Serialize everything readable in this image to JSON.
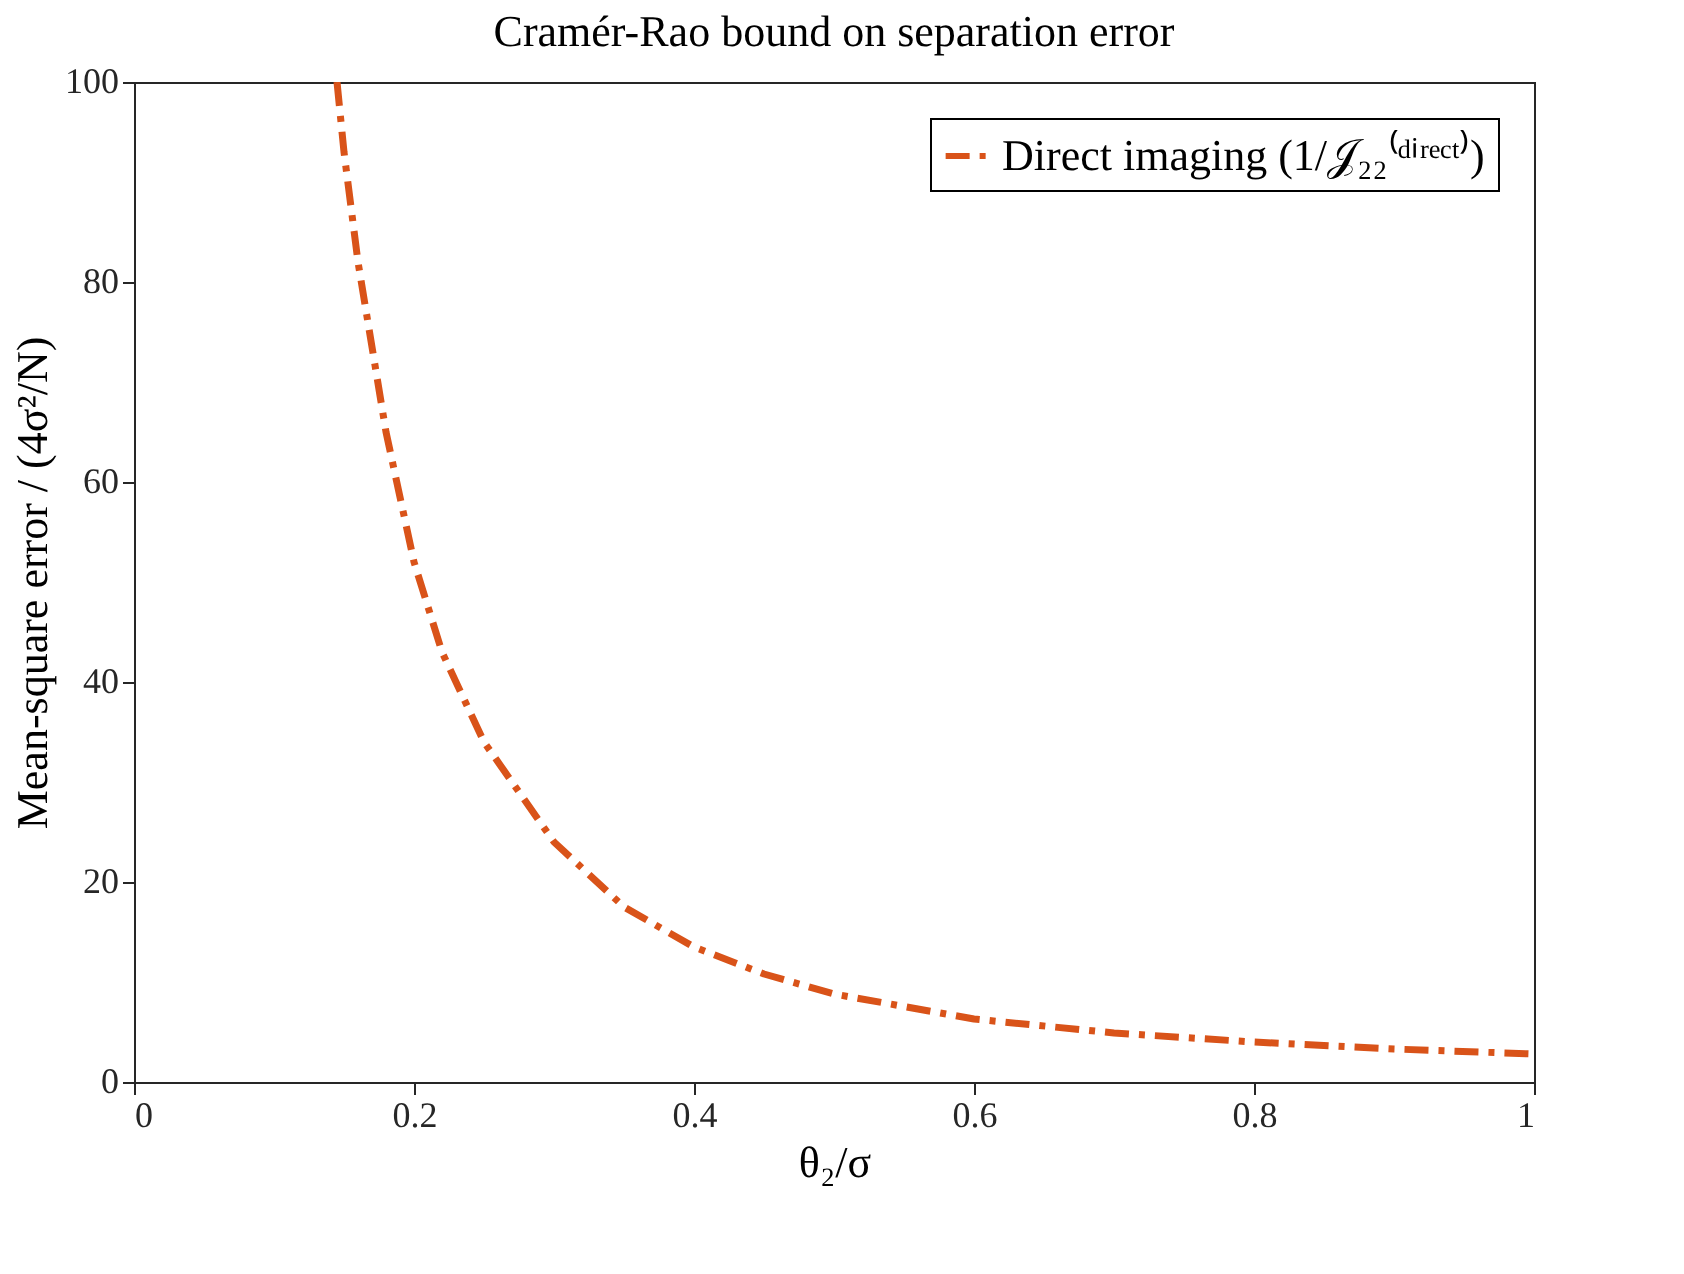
{
  "chart_data": {
    "type": "line",
    "title": "Cramér-Rao bound on separation error",
    "xlabel": "θ₂/σ",
    "ylabel": "Mean-square error / (4σ²/N)",
    "x": [
      0.145,
      0.15,
      0.16,
      0.18,
      0.2,
      0.22,
      0.25,
      0.3,
      0.35,
      0.4,
      0.45,
      0.5,
      0.6,
      0.7,
      0.8,
      0.9,
      1.0
    ],
    "series": [
      {
        "name": "Direct imaging (1/𝒥₂₂⁽ᵈⁱʳᵉᶜᵗ⁾)",
        "color": "#d95319",
        "values": [
          100,
          93,
          82,
          65,
          52,
          43,
          34,
          24,
          17.5,
          13.5,
          10.8,
          8.8,
          6.3,
          4.9,
          4,
          3.3,
          2.8
        ]
      }
    ],
    "xlim": [
      0,
      1
    ],
    "xticks": [
      0,
      0.2,
      0.4,
      0.6,
      0.8,
      1
    ],
    "ylim": [
      0,
      100
    ],
    "yticks": [
      0,
      20,
      40,
      60,
      80,
      100
    ],
    "grid": false,
    "legend": "top right",
    "line_style": "dashed",
    "marker": "none"
  }
}
